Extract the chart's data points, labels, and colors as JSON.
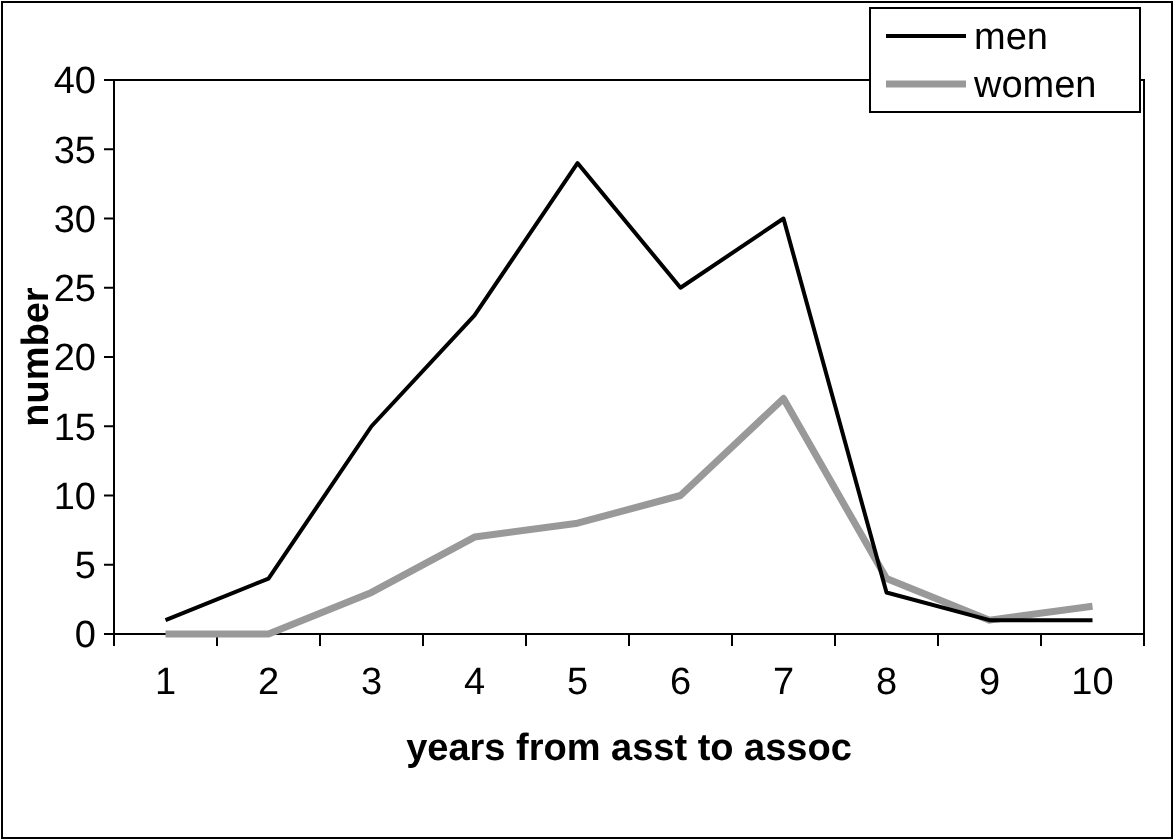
{
  "chart_data": {
    "type": "line",
    "xlabel": "years from asst to assoc",
    "ylabel": "number",
    "categories": [
      "1",
      "2",
      "3",
      "4",
      "5",
      "6",
      "7",
      "8",
      "9",
      "10"
    ],
    "series": [
      {
        "name": "men",
        "color": "#000000",
        "values": [
          1,
          4,
          15,
          23,
          34,
          25,
          30,
          3,
          1,
          1
        ]
      },
      {
        "name": "women",
        "color": "#999999",
        "values": [
          0,
          0,
          3,
          7,
          8,
          10,
          17,
          4,
          1,
          2
        ]
      }
    ],
    "ylim": [
      0,
      40
    ],
    "yticks": [
      0,
      5,
      10,
      15,
      20,
      25,
      30,
      35,
      40
    ],
    "legend": "top right",
    "marker": "none",
    "line_style": "solid",
    "grid": false
  }
}
